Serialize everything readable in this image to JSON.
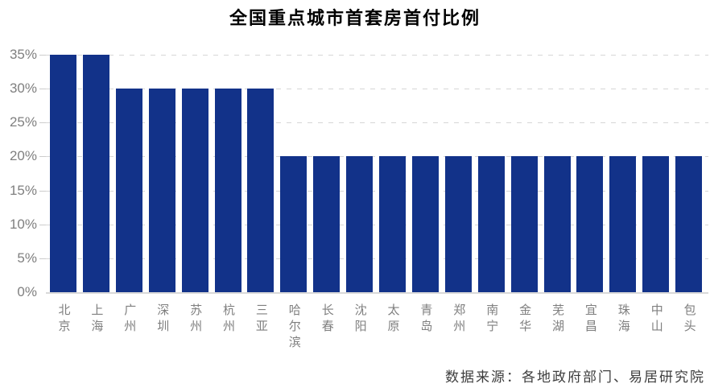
{
  "chart_data": {
    "type": "bar",
    "title": "全国重点城市首套房首付比例",
    "categories": [
      "北京",
      "上海",
      "广州",
      "深圳",
      "苏州",
      "杭州",
      "三亚",
      "哈尔滨",
      "长春",
      "沈阳",
      "太原",
      "青岛",
      "郑州",
      "南宁",
      "金华",
      "芜湖",
      "宜昌",
      "珠海",
      "中山",
      "包头"
    ],
    "values": [
      35,
      35,
      30,
      30,
      30,
      30,
      30,
      20,
      20,
      20,
      20,
      20,
      20,
      20,
      20,
      20,
      20,
      20,
      20,
      20
    ],
    "unit": "%",
    "xlabel": "",
    "ylabel": "",
    "ylim": [
      0,
      35
    ],
    "ytick_step": 5,
    "ytick_labels": [
      "0%",
      "5%",
      "10%",
      "15%",
      "20%",
      "25%",
      "30%",
      "35%"
    ],
    "grid": "horizontal-dashed",
    "legend": "none",
    "colors": {
      "bar": "#123289",
      "gridline": "#d6d6d6",
      "axis_line": "#d9d9d9",
      "tick_label": "#7f7f7f",
      "title": "#000000"
    }
  },
  "source_note": "数据来源：各地政府部门、易居研究院"
}
